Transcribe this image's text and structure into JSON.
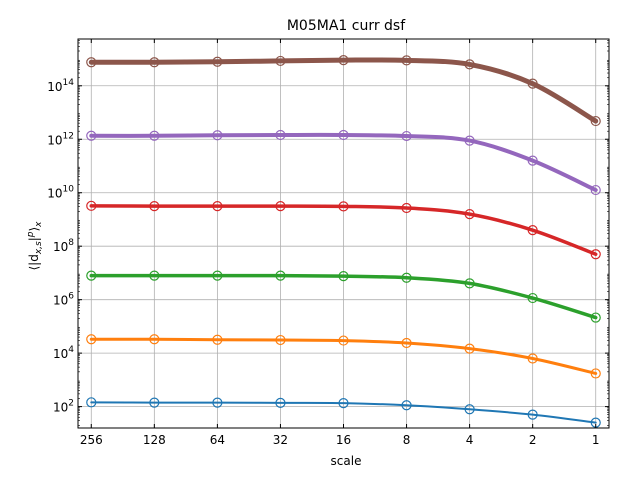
{
  "chart_data": {
    "type": "line",
    "title": "M05MA1 curr dsf",
    "xlabel": "scale",
    "ylabel": "⟨|d",
    "ylabel_sub": "x,s",
    "ylabel_sup": "p",
    "ylabel_end": "⟩",
    "ylabel_end_sub": "x",
    "x_scale": "log2-reversed",
    "y_scale": "log10",
    "x_ticks": [
      256,
      128,
      64,
      32,
      16,
      8,
      4,
      2,
      1
    ],
    "x_tick_labels": [
      "256",
      "128",
      "64",
      "32",
      "16",
      "8",
      "4",
      "2",
      "1"
    ],
    "y_ticks": [
      100,
      10000,
      1000000,
      100000000,
      10000000000,
      1000000000000,
      100000000000000
    ],
    "y_tick_labels": [
      {
        "base": "10",
        "exp": "2"
      },
      {
        "base": "10",
        "exp": "4"
      },
      {
        "base": "10",
        "exp": "6"
      },
      {
        "base": "10",
        "exp": "8"
      },
      {
        "base": "10",
        "exp": "10"
      },
      {
        "base": "10",
        "exp": "12"
      },
      {
        "base": "10",
        "exp": "14"
      }
    ],
    "xlim": [
      256,
      1
    ],
    "ylim_log10": [
      1.2,
      15.75
    ],
    "grid": true,
    "x": [
      256,
      128,
      64,
      32,
      16,
      8,
      4,
      2,
      1
    ],
    "series": [
      {
        "color": "#1f77b4",
        "width": 2,
        "log10_values": [
          2.16,
          2.15,
          2.15,
          2.14,
          2.13,
          2.05,
          1.9,
          1.7,
          1.4
        ]
      },
      {
        "color": "#ff7f0e",
        "width": 3,
        "log10_values": [
          4.52,
          4.52,
          4.5,
          4.49,
          4.47,
          4.38,
          4.17,
          3.8,
          3.24
        ]
      },
      {
        "color": "#2ca02c",
        "width": 3.5,
        "log10_values": [
          6.9,
          6.9,
          6.9,
          6.9,
          6.88,
          6.82,
          6.61,
          6.06,
          5.33
        ]
      },
      {
        "color": "#d62728",
        "width": 3.5,
        "log10_values": [
          9.51,
          9.5,
          9.5,
          9.5,
          9.49,
          9.43,
          9.2,
          8.6,
          7.7
        ]
      },
      {
        "color": "#9467bd",
        "width": 4,
        "log10_values": [
          12.13,
          12.13,
          12.15,
          12.16,
          12.16,
          12.12,
          11.95,
          11.2,
          10.1
        ]
      },
      {
        "color": "#8c564b",
        "width": 5,
        "log10_values": [
          14.88,
          14.88,
          14.9,
          14.93,
          14.96,
          14.95,
          14.8,
          14.08,
          12.68
        ]
      }
    ]
  }
}
